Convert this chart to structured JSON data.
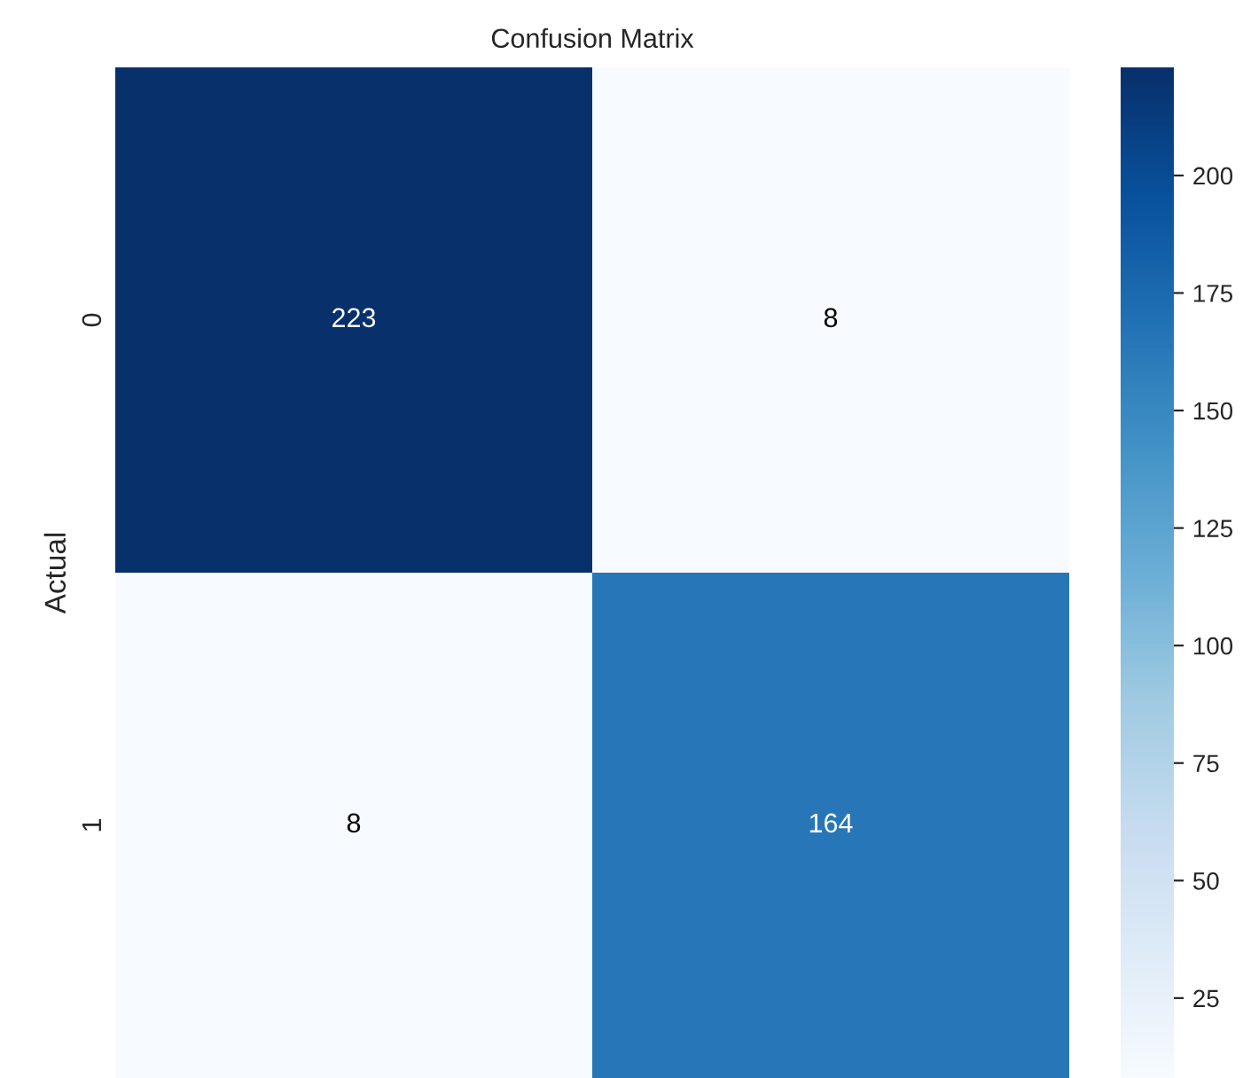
{
  "chart_data": {
    "type": "heatmap",
    "title": "Confusion Matrix",
    "ylabel": "Actual",
    "categories": [
      null,
      null
    ],
    "y_categories": [
      "0",
      "1"
    ],
    "cells": [
      [
        223,
        8
      ],
      [
        8,
        164
      ]
    ],
    "clim": [
      8,
      223
    ],
    "cticks": [
      25,
      50,
      75,
      100,
      125,
      150,
      175,
      200
    ],
    "data_labels": true,
    "tick_labels": "y"
  }
}
